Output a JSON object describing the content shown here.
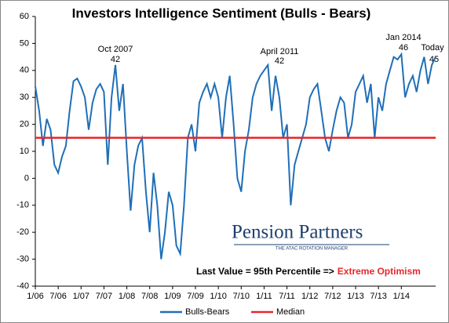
{
  "chart_data": {
    "type": "line",
    "title": "Investors Intelligence Sentiment (Bulls - Bears)",
    "categories": [
      "1/06",
      null,
      null,
      null,
      null,
      null,
      "7/06",
      null,
      null,
      null,
      null,
      null,
      "1/07",
      null,
      null,
      null,
      null,
      null,
      "7/07",
      null,
      null,
      null,
      null,
      null,
      "1/08",
      null,
      null,
      null,
      null,
      null,
      "7/08",
      null,
      null,
      null,
      null,
      null,
      "1/09",
      null,
      null,
      null,
      null,
      null,
      "7/09",
      null,
      null,
      null,
      null,
      null,
      "1/10",
      null,
      null,
      null,
      null,
      null,
      "7/10",
      null,
      null,
      null,
      null,
      null,
      "1/11",
      null,
      null,
      null,
      null,
      null,
      "7/11",
      null,
      null,
      null,
      null,
      null,
      "1/12",
      null,
      null,
      null,
      null,
      null,
      "7/12",
      null,
      null,
      null,
      null,
      null,
      "1/13",
      null,
      null,
      null,
      null,
      null,
      "7/13",
      null,
      null,
      null,
      null,
      null,
      "1/14",
      null,
      null,
      null,
      null,
      null,
      null,
      null,
      null,
      null
    ],
    "series": [
      {
        "name": "Bulls-Bears",
        "color": "#1f6fb8",
        "values": [
          34,
          25,
          12,
          22,
          18,
          5,
          2,
          8,
          12,
          25,
          36,
          37,
          34,
          30,
          18,
          28,
          33,
          35,
          32,
          5,
          30,
          42,
          25,
          35,
          10,
          -12,
          5,
          12,
          15,
          -5,
          -20,
          2,
          -10,
          -30,
          -20,
          -5,
          -10,
          -25,
          -28,
          -10,
          15,
          20,
          10,
          28,
          32,
          35,
          30,
          35,
          30,
          15,
          30,
          38,
          20,
          0,
          -5,
          10,
          18,
          30,
          35,
          38,
          40,
          42,
          25,
          38,
          30,
          15,
          20,
          -10,
          5,
          10,
          15,
          20,
          30,
          33,
          35,
          25,
          15,
          10,
          18,
          25,
          30,
          28,
          15,
          20,
          32,
          35,
          38,
          28,
          35,
          15,
          30,
          25,
          35,
          40,
          45,
          44,
          46,
          30,
          35,
          38,
          32,
          40,
          45,
          35,
          42,
          45
        ]
      }
    ],
    "median": {
      "name": "Median",
      "color": "#e8262b",
      "value": 15
    },
    "ylim": [
      -40,
      60
    ],
    "yticks": [
      -40,
      -30,
      -20,
      -10,
      0,
      10,
      20,
      30,
      40,
      50,
      60
    ],
    "annotations": [
      {
        "label": "Oct 2007",
        "value": 42
      },
      {
        "label": "April 2011",
        "value": 42
      },
      {
        "label": "Jan 2014",
        "value": 46
      },
      {
        "label": "Today",
        "value": 45
      }
    ],
    "note": {
      "text": "Last Value = 95th Percentile =>",
      "highlight": "Extreme Optimism"
    },
    "logo": {
      "name": "Pension Partners",
      "tagline": "THE ATAC ROTATION MANAGER"
    }
  }
}
